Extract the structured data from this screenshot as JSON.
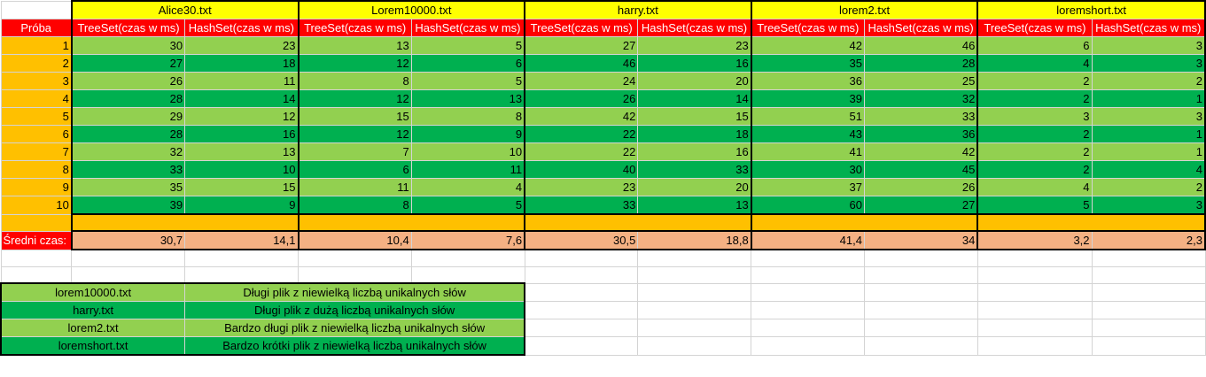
{
  "files": [
    "Alice30.txt",
    "Lorem10000.txt",
    "harry.txt",
    "lorem2.txt",
    "loremshort.txt"
  ],
  "label_proba": "Próba",
  "col_tree": "TreeSet(czas w ms)",
  "col_hash": "HashSet(czas w ms)",
  "trial_numbers": [
    "1",
    "2",
    "3",
    "4",
    "5",
    "6",
    "7",
    "8",
    "9",
    "10"
  ],
  "rows": [
    [
      "30",
      "23",
      "13",
      "5",
      "27",
      "23",
      "42",
      "46",
      "6",
      "3"
    ],
    [
      "27",
      "18",
      "12",
      "6",
      "46",
      "16",
      "35",
      "28",
      "4",
      "3"
    ],
    [
      "26",
      "11",
      "8",
      "5",
      "24",
      "20",
      "36",
      "25",
      "2",
      "2"
    ],
    [
      "28",
      "14",
      "12",
      "13",
      "26",
      "14",
      "39",
      "32",
      "2",
      "1"
    ],
    [
      "29",
      "12",
      "15",
      "8",
      "42",
      "15",
      "51",
      "33",
      "3",
      "3"
    ],
    [
      "28",
      "16",
      "12",
      "9",
      "22",
      "18",
      "43",
      "36",
      "2",
      "1"
    ],
    [
      "32",
      "13",
      "7",
      "10",
      "22",
      "16",
      "41",
      "42",
      "2",
      "1"
    ],
    [
      "33",
      "10",
      "6",
      "11",
      "40",
      "33",
      "30",
      "45",
      "2",
      "4"
    ],
    [
      "35",
      "15",
      "11",
      "4",
      "23",
      "20",
      "37",
      "26",
      "4",
      "2"
    ],
    [
      "39",
      "9",
      "8",
      "5",
      "33",
      "13",
      "60",
      "27",
      "5",
      "3"
    ]
  ],
  "avg_label": "Średni czas:",
  "averages": [
    "30,7",
    "14,1",
    "10,4",
    "7,6",
    "30,5",
    "18,8",
    "41,4",
    "34",
    "3,2",
    "2,3"
  ],
  "legend": [
    {
      "file": "lorem10000.txt",
      "desc": "Długi plik z niewielką liczbą unikalnych słów"
    },
    {
      "file": "harry.txt",
      "desc": "Długi plik z dużą liczbą unikalnych słów"
    },
    {
      "file": "lorem2.txt",
      "desc": "Bardzo długi plik z niewielką liczbą unikalnych słów"
    },
    {
      "file": "loremshort.txt",
      "desc": "Bardzo krótki plik z niewielką liczbą unikalnych słów"
    }
  ],
  "colors": {
    "header_yellow": "#ffff00",
    "header_red": "#ff0000",
    "orange": "#ffc000",
    "light_green": "#92d050",
    "dark_green": "#00b050",
    "salmon": "#f4b183"
  }
}
